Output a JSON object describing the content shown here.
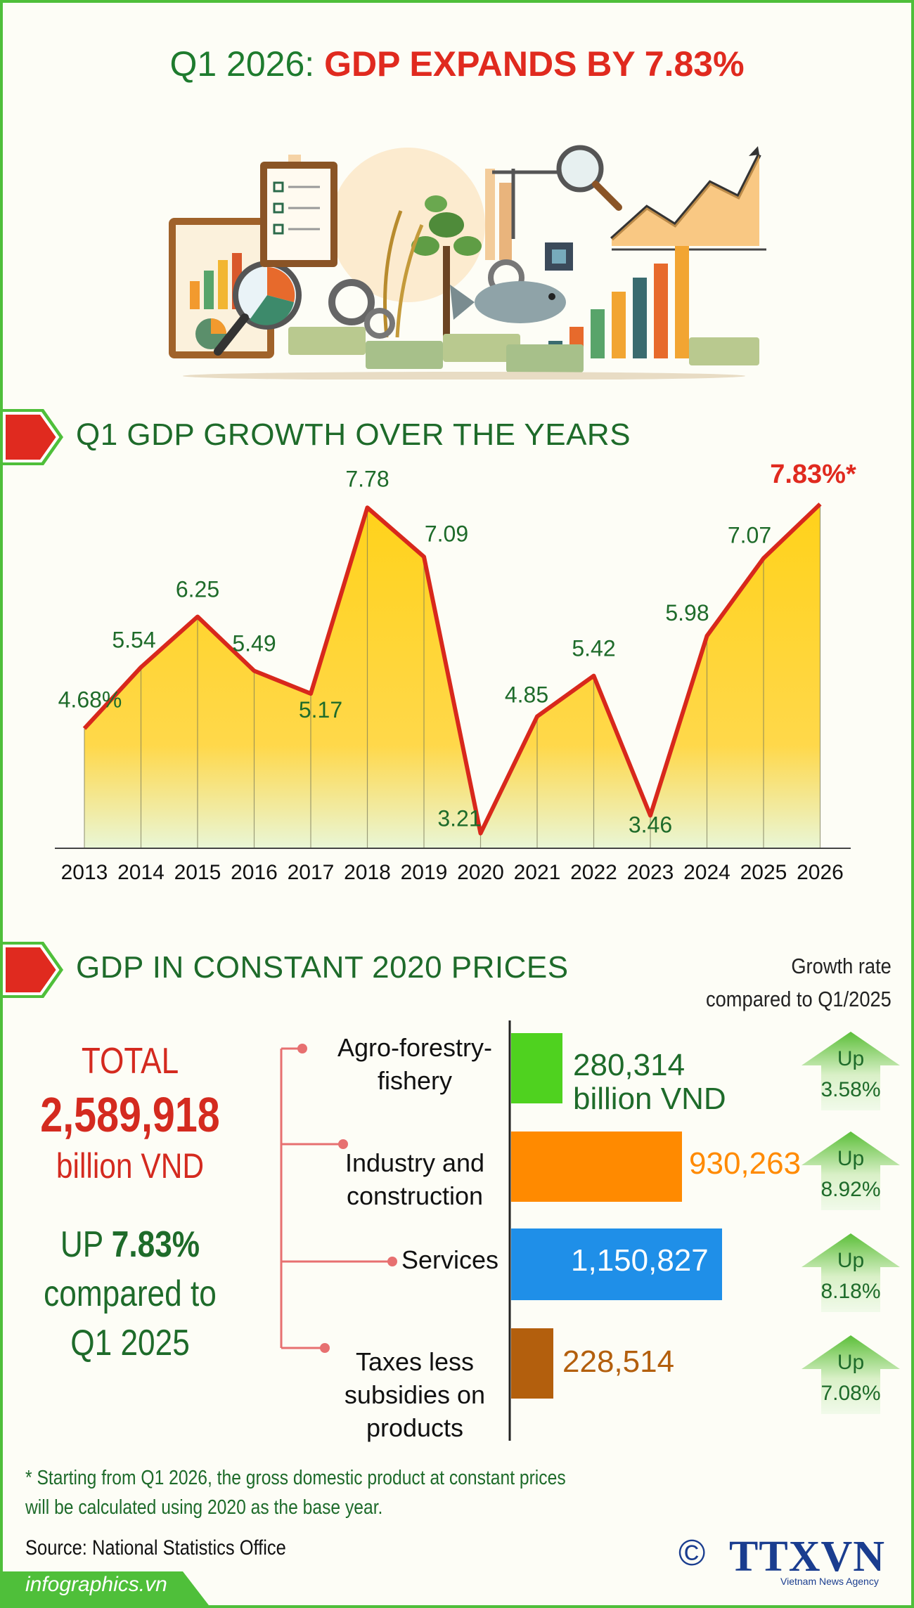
{
  "header": {
    "title_prefix": "Q1 2026: ",
    "title_highlight": "GDP EXPANDS BY 7.83%"
  },
  "section1": {
    "heading": "Q1 GDP GROWTH OVER THE YEARS"
  },
  "chart_data": {
    "type": "area",
    "x": [
      "2013",
      "2014",
      "2015",
      "2016",
      "2017",
      "2018",
      "2019",
      "2020",
      "2021",
      "2022",
      "2023",
      "2024",
      "2025",
      "2026"
    ],
    "y": [
      4.68,
      5.54,
      6.25,
      5.49,
      5.17,
      7.78,
      7.09,
      3.21,
      4.85,
      5.42,
      3.46,
      5.98,
      7.07,
      7.83
    ],
    "labels": [
      "4.68%",
      "5.54",
      "6.25",
      "5.49",
      "5.17",
      "7.78",
      "7.09",
      "3.21",
      "4.85",
      "5.42",
      "3.46",
      "5.98",
      "7.07",
      "7.83%*"
    ],
    "ylim": [
      3.0,
      8.0
    ],
    "xlabel": "",
    "ylabel": "",
    "title": "",
    "highlight_index": 13,
    "colors": {
      "line": "#d8281c",
      "fill_top": "#ffd21a",
      "fill_bottom": "#e9f6d6",
      "label": "#1e6b2a",
      "highlight": "#e02a1f"
    }
  },
  "section2": {
    "heading": "GDP IN CONSTANT 2020 PRICES",
    "growth_header_line1": "Growth rate",
    "growth_header_line2": "compared to Q1/2025",
    "total_label": "TOTAL",
    "total_value": "2,589,918",
    "total_unit": "billion VND",
    "up_prefix": "UP ",
    "up_value": "7.83%",
    "up_line2": "compared to",
    "up_line3": "Q1 2025",
    "sectors": [
      {
        "label1": "Agro-forestry-",
        "label2": "fishery",
        "label3": "",
        "value": "280,314",
        "unit": "billion VND",
        "amount": 280314,
        "color": "#4fd21f",
        "value_color": "#1e6b2a",
        "up_word": "Up",
        "growth": "3.58%"
      },
      {
        "label1": "Industry and",
        "label2": "construction",
        "label3": "",
        "value": "930,263",
        "unit": "",
        "amount": 930263,
        "color": "#ff8a00",
        "value_color": "#ff8a00",
        "up_word": "Up",
        "growth": "8.92%"
      },
      {
        "label1": "Services",
        "label2": "",
        "label3": "",
        "value": "1,150,827",
        "unit": "",
        "amount": 1150827,
        "color": "#1f8fe8",
        "value_color": "#ffffff",
        "up_word": "Up",
        "growth": "8.18%"
      },
      {
        "label1": "Taxes less",
        "label2": "subsidies on",
        "label3": "products",
        "value": "228,514",
        "unit": "",
        "amount": 228514,
        "color": "#b35f0d",
        "value_color": "#b35f0d",
        "up_word": "Up",
        "growth": "7.08%"
      }
    ]
  },
  "footnote": {
    "line1": "* Starting from Q1 2026, the gross domestic product at constant prices",
    "line2": "will be calculated using 2020 as the base year."
  },
  "source": "Source: National Statistics Office",
  "footer": {
    "site": "infographics.vn",
    "logo_symbol": "©",
    "logo_text": "TTXVN",
    "logo_sub": "Vietnam News Agency"
  }
}
